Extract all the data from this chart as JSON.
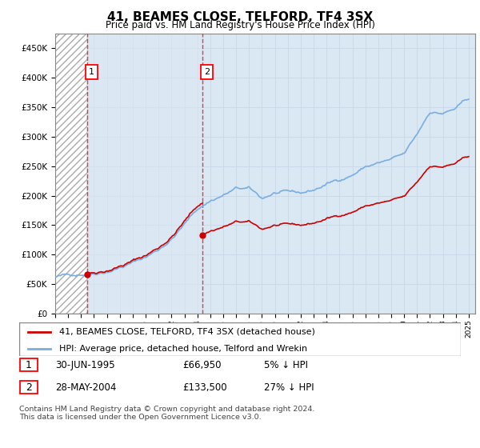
{
  "title": "41, BEAMES CLOSE, TELFORD, TF4 3SX",
  "subtitle": "Price paid vs. HM Land Registry's House Price Index (HPI)",
  "ylim": [
    0,
    475000
  ],
  "yticks": [
    0,
    50000,
    100000,
    150000,
    200000,
    250000,
    300000,
    350000,
    400000,
    450000
  ],
  "ytick_labels": [
    "£0",
    "£50K",
    "£100K",
    "£150K",
    "£200K",
    "£250K",
    "£300K",
    "£350K",
    "£400K",
    "£450K"
  ],
  "hpi_color": "#7aade0",
  "price_color": "#cc0000",
  "grid_color": "#c8d8e8",
  "background_color": "#dae8f4",
  "hatch_bg": "#ffffff",
  "sale1_year": 1995.5,
  "sale1_price": 66950,
  "sale2_year": 2004.42,
  "sale2_price": 133500,
  "legend_line1": "41, BEAMES CLOSE, TELFORD, TF4 3SX (detached house)",
  "legend_line2": "HPI: Average price, detached house, Telford and Wrekin",
  "table_row1": [
    "1",
    "30-JUN-1995",
    "£66,950",
    "5% ↓ HPI"
  ],
  "table_row2": [
    "2",
    "28-MAY-2004",
    "£133,500",
    "27% ↓ HPI"
  ],
  "footer": "Contains HM Land Registry data © Crown copyright and database right 2024.\nThis data is licensed under the Open Government Licence v3.0.",
  "xmin": 1993.0,
  "xmax": 2025.5
}
